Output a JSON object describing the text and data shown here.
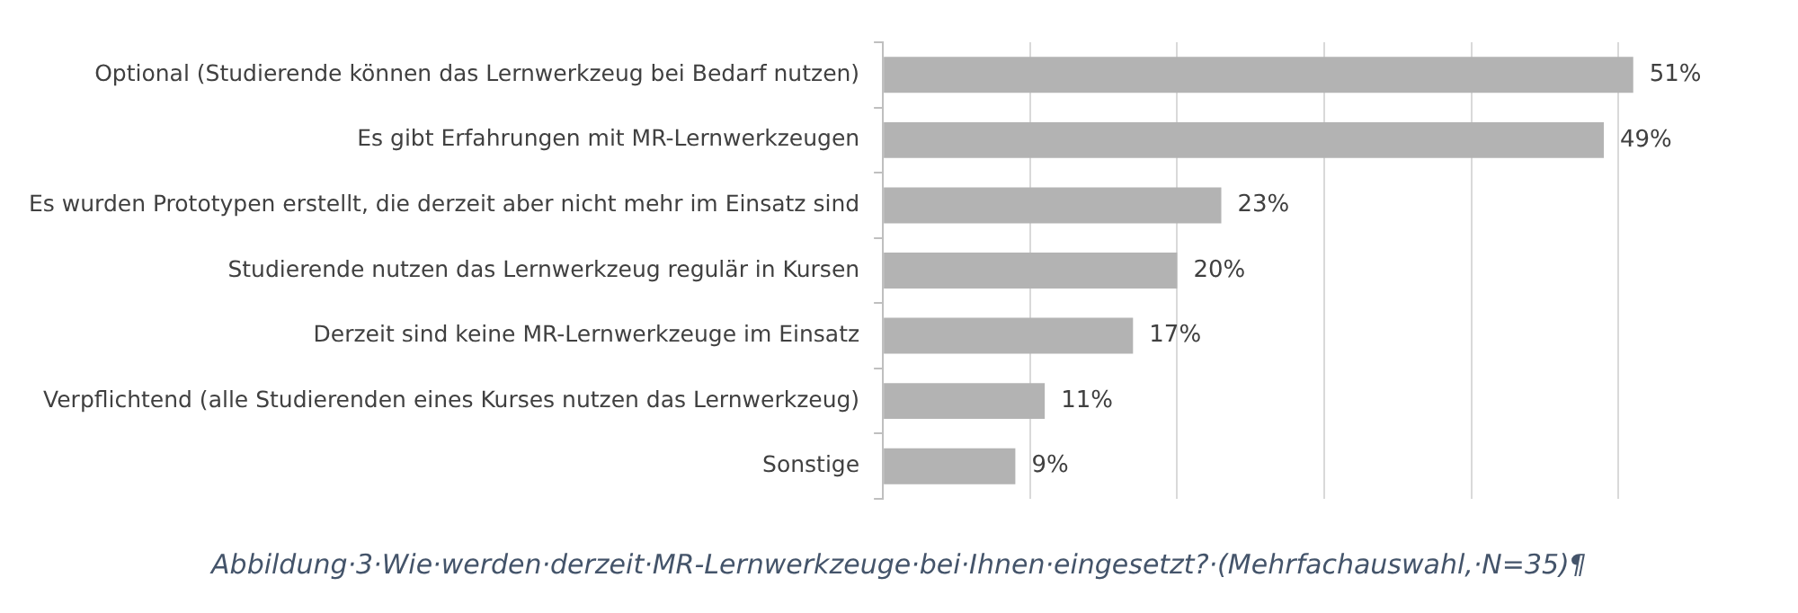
{
  "chart_data": {
    "type": "bar",
    "orientation": "horizontal",
    "categories": [
      "Optional (Studierende können das Lernwerkzeug bei Bedarf nutzen)",
      "Es gibt Erfahrungen mit MR-Lernwerkzeugen",
      "Es wurden Prototypen erstellt, die derzeit aber nicht mehr im Einsatz sind",
      "Studierende nutzen das Lernwerkzeug regulär in Kursen",
      "Derzeit sind keine MR-Lernwerkzeuge im Einsatz",
      "Verpflichtend (alle Studierenden eines Kurses nutzen das Lernwerkzeug)",
      "Sonstige"
    ],
    "values": [
      51,
      49,
      23,
      20,
      17,
      11,
      9
    ],
    "value_labels": [
      "51%",
      "49%",
      "23%",
      "20%",
      "17%",
      "11%",
      "9%"
    ],
    "color": "#b3b3b3",
    "xticks": [
      {
        "value": 0,
        "label": null
      },
      {
        "value": 10,
        "label": null
      },
      {
        "value": 20,
        "label": null
      },
      {
        "value": 30,
        "label": null
      },
      {
        "value": 40,
        "label": null
      },
      {
        "value": 50,
        "label": null
      }
    ],
    "grid": "x",
    "tick_labels": "y",
    "annotations": [
      "Abbildung·3·Wie·werden·derzeit·MR-Lernwerkzeuge·bei·Ihnen·eingesetzt?·(Mehrfachauswahl,·N=35)¶"
    ]
  }
}
